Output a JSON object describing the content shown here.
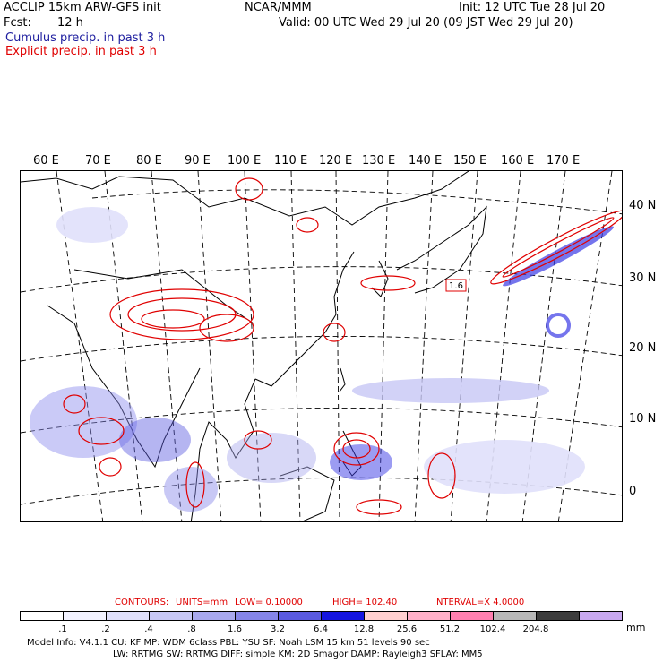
{
  "header": {
    "model_line": "ACCLIP 15km ARW-GFS init",
    "center": "NCAR/MMM",
    "init": "Init: 12 UTC Tue 28 Jul 20",
    "fcst_label": "Fcst:",
    "fcst_value": "12 h",
    "valid": "Valid: 00 UTC Wed 29 Jul 20 (09 JST Wed 29 Jul 20)",
    "cumulus_label": "Cumulus precip. in past 3 h",
    "explicit_label": "Explicit precip. in past 3 h"
  },
  "map": {
    "longitude_labels": [
      "60 E",
      "70 E",
      "80 E",
      "90 E",
      "100 E",
      "110 E",
      "120 E",
      "130 E",
      "140 E",
      "150 E",
      "160 E",
      "170 E"
    ],
    "latitude_labels": [
      "40 N",
      "30 N",
      "20 N",
      "10 N",
      "0"
    ],
    "annotation_value": "1.6",
    "colors": {
      "cumulus": "#2030e0",
      "explicit": "#e00000",
      "coast": "#000000",
      "grid": "#000000"
    }
  },
  "contours": {
    "title": "CONTOURS:",
    "units": "UNITS=mm",
    "low": "LOW=  0.10000",
    "high": "HIGH=   102.40",
    "interval": "INTERVAL=X   4.0000"
  },
  "colorbar": {
    "colors": [
      "#ffffff",
      "#f2f2ff",
      "#e0e0fb",
      "#c7c7f5",
      "#a8a8ee",
      "#8585e8",
      "#5a5ae0",
      "#1515e0",
      "#ffd0d0",
      "#ffb0c8",
      "#ff80b0",
      "#b8b8b8",
      "#3c3c3c",
      "#c8a8f0"
    ],
    "labels": [
      ".1",
      ".2",
      ".4",
      ".8",
      "1.6",
      "3.2",
      "6.4",
      "12.8",
      "25.6",
      "51.2",
      "102.4",
      "204.8"
    ],
    "unit": "mm"
  },
  "footer": {
    "line1": "Model Info: V4.1.1     CU: KF         MP: WDM 6class   PBL: YSU          SF: Noah LSM      15 km    51 levels   90 sec",
    "line2": "LW: RRTMG    SW: RRTMG   DIFF: simple KM: 2D Smagor DAMP: Rayleigh3  SFLAY: MM5"
  }
}
